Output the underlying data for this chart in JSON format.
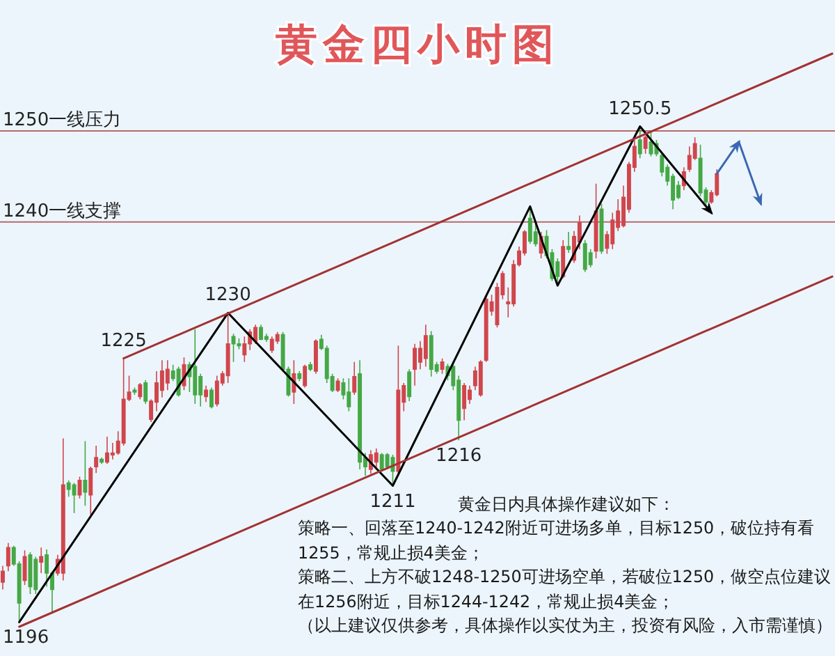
{
  "chart_data": {
    "type": "candlestick",
    "title": "黄金四小时图",
    "categories": [
      null,
      null,
      null,
      null,
      null,
      null,
      null,
      null,
      null,
      null,
      null,
      null,
      null,
      null,
      null,
      null,
      null,
      null,
      null,
      null,
      null,
      null,
      null,
      null,
      null,
      null,
      null,
      null,
      null,
      null,
      null,
      null,
      null,
      null,
      null,
      null,
      null,
      null,
      null,
      null,
      null,
      null,
      null,
      null,
      null,
      null,
      null,
      null,
      null,
      null,
      null,
      null,
      null,
      null,
      null,
      null,
      null,
      null,
      null,
      null,
      null,
      null,
      null,
      null,
      null,
      null,
      null,
      null,
      null,
      null,
      null,
      null,
      null,
      null,
      null,
      null,
      null,
      null,
      null,
      null,
      null,
      null,
      null,
      null,
      null,
      null,
      null,
      null,
      null,
      null,
      null,
      null,
      null,
      null,
      null,
      null,
      null,
      null,
      null,
      null,
      null,
      null,
      null,
      null,
      null,
      null,
      null,
      null,
      null,
      null,
      null,
      null,
      null,
      null,
      null,
      null,
      null,
      null,
      null,
      null,
      null,
      null,
      null,
      null,
      null,
      null,
      null,
      null,
      null,
      null,
      null,
      null,
      null,
      null,
      null,
      null,
      null,
      null,
      null,
      null,
      null,
      null,
      null,
      null,
      null,
      null,
      null,
      null,
      null,
      null,
      null,
      null
    ],
    "ohlc": [
      [
        1200.4,
        1202.2,
        1199.6,
        1201.6
      ],
      [
        1202.2,
        1204.7,
        1201.6,
        1204.2
      ],
      [
        1204.2,
        1204.4,
        1202.2,
        1202.4
      ],
      [
        1202.4,
        1202.7,
        1196,
        1198.1
      ],
      [
        1200.6,
        1203.9,
        1200.1,
        1203.2
      ],
      [
        1203.4,
        1203.7,
        1199.1,
        1199.9
      ],
      [
        1202.9,
        1203.2,
        1199.1,
        1199.6
      ],
      [
        1202.6,
        1204.2,
        1201.4,
        1203.2
      ],
      [
        1203.4,
        1204.0,
        1199.9,
        1201.4
      ],
      [
        1201.4,
        1201.6,
        1197.0,
        1199.6
      ],
      [
        1201.4,
        1203.4,
        1201.1,
        1202.9
      ],
      [
        1201.4,
        1216.2,
        1200.6,
        1211.1
      ],
      [
        1211.3,
        1211.6,
        1209.8,
        1210.6
      ],
      [
        1211.1,
        1211.3,
        1208.0,
        1210.0
      ],
      [
        1210.0,
        1212.0,
        1209.6,
        1211.6
      ],
      [
        1211.6,
        1215.9,
        1208.8,
        1210.3
      ],
      [
        1210.0,
        1213.1,
        1207.8,
        1212.9
      ],
      [
        1213.1,
        1215.4,
        1212.4,
        1214.1
      ],
      [
        1213.9,
        1214.1,
        1213.4,
        1213.6
      ],
      [
        1213.6,
        1216.4,
        1213.4,
        1214.6
      ],
      [
        1214.4,
        1215.7,
        1213.9,
        1214.6
      ],
      [
        1214.6,
        1217.0,
        1214.4,
        1215.9
      ],
      [
        1215.7,
        1225,
        1215.4,
        1220.5
      ],
      [
        1220.5,
        1223.1,
        1220.3,
        1221.3
      ],
      [
        1221.5,
        1221.8,
        1221.0,
        1221.3
      ],
      [
        1220.8,
        1222.3,
        1220.5,
        1222.1
      ],
      [
        1222.3,
        1222.6,
        1220.0,
        1220.3
      ],
      [
        1218.3,
        1220.5,
        1218.0,
        1220.3
      ],
      [
        1220.2,
        1223.6,
        1219.2,
        1222.3
      ],
      [
        1221.5,
        1224.8,
        1220.7,
        1223.6
      ],
      [
        1222.3,
        1224.8,
        1221.5,
        1223.8
      ],
      [
        1223.6,
        1224.3,
        1222.5,
        1222.8
      ],
      [
        1223.8,
        1224.1,
        1220.8,
        1221.0
      ],
      [
        1222.0,
        1225.1,
        1221.5,
        1224.3
      ],
      [
        1224.3,
        1224.6,
        1221.3,
        1223.0
      ],
      [
        1224.1,
        1228.2,
        1220.0,
        1221.0
      ],
      [
        1223.0,
        1223.3,
        1219.7,
        1221.0
      ],
      [
        1220.8,
        1222.0,
        1220.2,
        1221.5
      ],
      [
        1221.5,
        1221.8,
        1219.5,
        1219.7
      ],
      [
        1220.0,
        1223.1,
        1219.7,
        1222.5
      ],
      [
        1222.3,
        1223.6,
        1222.0,
        1223.3
      ],
      [
        1223.1,
        1230,
        1222.3,
        1226.6
      ],
      [
        1227.4,
        1227.7,
        1224.6,
        1226.6
      ],
      [
        1226.6,
        1227.2,
        1226.0,
        1226.4
      ],
      [
        1225.4,
        1227.4,
        1224.6,
        1226.6
      ],
      [
        1226.6,
        1228.2,
        1225.9,
        1227.9
      ],
      [
        1226.9,
        1228.7,
        1226.6,
        1228.4
      ],
      [
        1228.4,
        1228.7,
        1227.0,
        1227.1
      ],
      [
        1227.4,
        1227.7,
        1226.8,
        1227.1
      ],
      [
        1225.9,
        1227.4,
        1225.6,
        1227.1
      ],
      [
        1226.9,
        1227.9,
        1226.6,
        1227.6
      ],
      [
        1227.6,
        1227.9,
        1223.6,
        1223.8
      ],
      [
        1223.8,
        1224.1,
        1220.8,
        1221.0
      ],
      [
        1221.3,
        1224.8,
        1220.0,
        1223.3
      ],
      [
        1223.3,
        1223.6,
        1222.5,
        1222.8
      ],
      [
        1222.0,
        1224.3,
        1221.8,
        1224.1
      ],
      [
        1224.3,
        1224.6,
        1223.6,
        1223.8
      ],
      [
        1223.6,
        1227.1,
        1223.3,
        1226.9
      ],
      [
        1227.1,
        1227.6,
        1225.9,
        1226.1
      ],
      [
        1226.1,
        1226.4,
        1222.3,
        1222.8
      ],
      [
        1223.0,
        1223.3,
        1221.3,
        1221.5
      ],
      [
        1221.5,
        1222.8,
        1221.3,
        1222.5
      ],
      [
        1222.3,
        1222.8,
        1220.5,
        1221.0
      ],
      [
        1221.3,
        1222.8,
        1219.2,
        1219.7
      ],
      [
        1221.3,
        1224.6,
        1221.0,
        1223.0
      ],
      [
        1223.3,
        1224.8,
        1212.8,
        1213.6
      ],
      [
        1214.1,
        1214.6,
        1212.1,
        1213.1
      ],
      [
        1212.8,
        1214.9,
        1212.3,
        1214.4
      ],
      [
        1213.6,
        1215.1,
        1212.8,
        1214.6
      ],
      [
        1214.4,
        1214.6,
        1212.6,
        1212.8
      ],
      [
        1214.4,
        1214.6,
        1212.8,
        1213.1
      ],
      [
        1214.1,
        1214.4,
        1211,
        1212.6
      ],
      [
        1212.6,
        1226.4,
        1212.1,
        1221.5
      ],
      [
        1220.2,
        1222.3,
        1219.2,
        1222.0
      ],
      [
        1223.5,
        1223.8,
        1220.3,
        1220.8
      ],
      [
        1223.8,
        1226.6,
        1222.0,
        1226.1
      ],
      [
        1224.6,
        1226.9,
        1223.8,
        1226.1
      ],
      [
        1225.0,
        1228.7,
        1224.1,
        1227.5
      ],
      [
        1227.5,
        1228.0,
        1223.0,
        1223.8
      ],
      [
        1224.3,
        1224.6,
        1223.3,
        1223.6
      ],
      [
        1223.8,
        1225.0,
        1223.3,
        1224.6
      ],
      [
        1224.1,
        1224.4,
        1222.6,
        1223.1
      ],
      [
        1224.1,
        1224.6,
        1221.5,
        1222.0
      ],
      [
        1222.6,
        1223.1,
        1216,
        1218.2
      ],
      [
        1219.5,
        1222.3,
        1218.2,
        1222.0
      ],
      [
        1220.5,
        1222.0,
        1220.0,
        1221.5
      ],
      [
        1222.0,
        1224.1,
        1221.5,
        1223.6
      ],
      [
        1221.0,
        1224.8,
        1220.8,
        1224.6
      ],
      [
        1224.8,
        1232.0,
        1224.6,
        1231.5
      ],
      [
        1230.2,
        1232.0,
        1229.7,
        1231.2
      ],
      [
        1228.7,
        1233.3,
        1228.4,
        1232.8
      ],
      [
        1232.0,
        1234.6,
        1231.5,
        1234.3
      ],
      [
        1231.0,
        1232.8,
        1229.5,
        1231.2
      ],
      [
        1231.0,
        1235.8,
        1230.7,
        1235.3
      ],
      [
        1235.3,
        1237.3,
        1235.1,
        1236.8
      ],
      [
        1236.6,
        1239.1,
        1236.3,
        1238.9
      ],
      [
        1240.4,
        1241.7,
        1237.6,
        1237.9
      ],
      [
        1238.9,
        1240.0,
        1237.3,
        1237.6
      ],
      [
        1236.6,
        1238.9,
        1236.0,
        1238.4
      ],
      [
        1238.4,
        1239.1,
        1236.0,
        1236.3
      ],
      [
        1236.6,
        1237.0,
        1233.5,
        1233.8
      ],
      [
        1235.6,
        1236.0,
        1233.0,
        1234.0
      ],
      [
        1234.0,
        1238.0,
        1233.8,
        1237.3
      ],
      [
        1237.3,
        1238.9,
        1236.6,
        1237.0
      ],
      [
        1235.8,
        1239.0,
        1235.5,
        1238.4
      ],
      [
        1237.8,
        1240.7,
        1237.0,
        1239.9
      ],
      [
        1237.6,
        1238.0,
        1234.5,
        1234.8
      ],
      [
        1236.6,
        1237.0,
        1235.0,
        1235.3
      ],
      [
        1236.8,
        1244.2,
        1236.0,
        1241.2
      ],
      [
        1241.4,
        1242.0,
        1236.5,
        1236.8
      ],
      [
        1237.1,
        1239.0,
        1236.5,
        1238.6
      ],
      [
        1237.6,
        1241.0,
        1237.0,
        1240.2
      ],
      [
        1239.4,
        1242.5,
        1239.0,
        1241.2
      ],
      [
        1239.6,
        1244.0,
        1239.4,
        1242.7
      ],
      [
        1241.4,
        1246.6,
        1241.0,
        1246.3
      ],
      [
        1246.0,
        1249.0,
        1245.5,
        1248.3
      ],
      [
        1249.0,
        1250.5,
        1247.0,
        1247.5
      ],
      [
        1248.1,
        1249.5,
        1247.5,
        1249.3
      ],
      [
        1248.8,
        1249.9,
        1247.2,
        1247.5
      ],
      [
        1248.6,
        1249.0,
        1247.2,
        1247.5
      ],
      [
        1247.3,
        1247.6,
        1245.0,
        1245.5
      ],
      [
        1246.0,
        1246.3,
        1244.0,
        1244.5
      ],
      [
        1245.0,
        1245.3,
        1241.4,
        1242.4
      ],
      [
        1244.0,
        1244.5,
        1242.5,
        1242.7
      ],
      [
        1244.0,
        1246.0,
        1243.5,
        1245.5
      ],
      [
        1245.8,
        1248.3,
        1245.5,
        1247.3
      ],
      [
        1247.0,
        1249.3,
        1246.8,
        1248.6
      ],
      [
        1247.0,
        1248.5,
        1242.8,
        1243.2
      ],
      [
        1243.5,
        1243.8,
        1241.7,
        1242.2
      ],
      [
        1242.2,
        1243.5,
        1242.0,
        1243.2
      ],
      [
        1243.0,
        1245.8,
        1242.8,
        1245.3
      ],
      null,
      null,
      null,
      null,
      null,
      null,
      null,
      null,
      null,
      null,
      null,
      null,
      null,
      null,
      null,
      null,
      null,
      null,
      null,
      null,
      null
    ],
    "colors": [
      "#d0464c",
      "#d0464c",
      "#45a845",
      "#45a845",
      "#d0464c",
      "#45a845",
      "#45a845",
      "#d0464c",
      "#45a845",
      "#45a845",
      "#d0464c",
      "#d0464c",
      "#45a845",
      "#45a845",
      "#d0464c",
      "#45a845",
      "#d0464c",
      "#d0464c",
      "#45a845",
      "#d0464c",
      "#d0464c",
      "#d0464c",
      "#d0464c",
      "#d0464c",
      "#45a845",
      "#d0464c",
      "#45a845",
      "#d0464c",
      "#d0464c",
      "#d0464c",
      "#d0464c",
      "#45a845",
      "#45a845",
      "#d0464c",
      "#45a845",
      "#45a845",
      "#45a845",
      "#d0464c",
      "#45a845",
      "#d0464c",
      "#d0464c",
      "#d0464c",
      "#45a845",
      "#45a845",
      "#d0464c",
      "#d0464c",
      "#d0464c",
      "#45a845",
      "#45a845",
      "#d0464c",
      "#d0464c",
      "#45a845",
      "#45a845",
      "#d0464c",
      "#45a845",
      "#d0464c",
      "#45a845",
      "#d0464c",
      "#45a845",
      "#45a845",
      "#45a845",
      "#d0464c",
      "#45a845",
      "#45a845",
      "#d0464c",
      "#45a845",
      "#45a845",
      "#d0464c",
      "#d0464c",
      "#45a845",
      "#45a845",
      "#45a845",
      "#d0464c",
      "#d0464c",
      "#45a845",
      "#d0464c",
      "#d0464c",
      "#d0464c",
      "#45a845",
      "#45a845",
      "#d0464c",
      "#45a845",
      "#45a845",
      "#45a845",
      "#d0464c",
      "#d0464c",
      "#d0464c",
      "#d0464c",
      "#d0464c",
      "#d0464c",
      "#d0464c",
      "#d0464c",
      "#d0464c",
      "#d0464c",
      "#d0464c",
      "#d0464c",
      "#45a845",
      "#45a845",
      "#d0464c",
      "#45a845",
      "#45a845",
      "#45a845",
      "#d0464c",
      "#45a845",
      "#d0464c",
      "#d0464c",
      "#45a845",
      "#45a845",
      "#d0464c",
      "#45a845",
      "#d0464c",
      "#d0464c",
      "#d0464c",
      "#d0464c",
      "#d0464c",
      "#d0464c",
      "#45a845",
      "#d0464c",
      "#45a845",
      "#45a845",
      "#45a845",
      "#45a845",
      "#45a845",
      "#45a845",
      "#d0464c",
      "#d0464c",
      "#d0464c",
      "#45a845",
      "#45a845",
      "#d0464c",
      "#d0464c",
      null,
      null,
      null,
      null,
      null,
      null,
      null,
      null,
      null,
      null,
      null,
      null,
      null,
      null,
      null,
      null,
      null,
      null,
      null,
      null,
      null
    ],
    "series": [
      {
        "type": "line",
        "color": "#000000",
        "values": [
          null,
          null,
          null,
          1196,
          null,
          null,
          null,
          null,
          null,
          null,
          null,
          null,
          null,
          null,
          null,
          null,
          null,
          null,
          null,
          null,
          null,
          null,
          null,
          null,
          null,
          null,
          null,
          null,
          null,
          null,
          null,
          null,
          null,
          null,
          null,
          null,
          null,
          null,
          null,
          null,
          null,
          1230,
          null,
          null,
          null,
          null,
          null,
          null,
          null,
          null,
          null,
          null,
          null,
          null,
          null,
          null,
          null,
          null,
          null,
          null,
          null,
          null,
          null,
          null,
          null,
          null,
          null,
          null,
          null,
          null,
          null,
          1211,
          null,
          null,
          null,
          null,
          null,
          null,
          null,
          null,
          null,
          null,
          null,
          null,
          null,
          null,
          null,
          null,
          null,
          null,
          null,
          null,
          null,
          null,
          null,
          null,
          1241.7,
          null,
          null,
          null,
          null,
          1233,
          null,
          null,
          null,
          null,
          null,
          null,
          null,
          null,
          null,
          null,
          null,
          null,
          null,
          null,
          1250.5,
          null,
          null,
          null,
          null,
          null,
          null,
          null,
          null,
          null,
          null,
          null,
          null,
          1241,
          null,
          null,
          null,
          null,
          null,
          null,
          null,
          null,
          null,
          null,
          null,
          null,
          null,
          null,
          null,
          null,
          null,
          null,
          null,
          null,
          null,
          null
        ]
      },
      {
        "type": "line",
        "color": "#a33232",
        "values": [
          null,
          null,
          null,
          null,
          null,
          null,
          null,
          null,
          null,
          null,
          null,
          null,
          null,
          null,
          null,
          null,
          null,
          null,
          null,
          null,
          null,
          null,
          1225,
          null,
          null,
          null,
          null,
          null,
          null,
          null,
          null,
          null,
          null,
          null,
          null,
          null,
          null,
          null,
          null,
          null,
          null,
          null,
          null,
          null,
          null,
          null,
          null,
          null,
          null,
          null,
          null,
          null,
          null,
          null,
          null,
          null,
          null,
          null,
          null,
          null,
          null,
          null,
          null,
          null,
          null,
          null,
          null,
          null,
          null,
          null,
          null,
          null,
          null,
          null,
          null,
          null,
          null,
          null,
          null,
          null,
          null,
          null,
          null,
          null,
          null,
          null,
          null,
          null,
          null,
          null,
          null,
          null,
          null,
          null,
          null,
          null,
          null,
          null,
          null,
          null,
          null,
          null,
          null,
          null,
          null,
          null,
          null,
          null,
          null,
          null,
          null,
          null,
          null,
          null,
          null,
          null,
          null,
          null,
          null,
          null,
          null,
          null,
          null,
          null,
          null,
          null,
          null,
          null,
          null,
          null,
          null,
          null,
          null,
          null,
          null,
          null,
          null,
          null,
          null,
          null,
          null,
          null,
          null,
          null,
          null,
          null,
          null,
          null,
          null,
          null,
          null,
          1258.5
        ]
      },
      {
        "type": "line",
        "color": "#a33232",
        "values": [
          null,
          null,
          null,
          1195.5,
          null,
          null,
          null,
          null,
          null,
          null,
          null,
          null,
          null,
          null,
          null,
          null,
          null,
          null,
          null,
          null,
          null,
          null,
          null,
          null,
          null,
          null,
          null,
          null,
          null,
          null,
          null,
          null,
          null,
          null,
          null,
          null,
          null,
          null,
          null,
          null,
          null,
          null,
          null,
          null,
          null,
          null,
          null,
          null,
          null,
          null,
          null,
          null,
          null,
          null,
          null,
          null,
          null,
          null,
          null,
          null,
          null,
          null,
          null,
          null,
          null,
          null,
          null,
          null,
          null,
          null,
          null,
          null,
          null,
          null,
          null,
          null,
          null,
          null,
          null,
          null,
          null,
          null,
          null,
          null,
          null,
          null,
          null,
          null,
          null,
          null,
          null,
          null,
          null,
          null,
          null,
          null,
          null,
          null,
          null,
          null,
          null,
          null,
          null,
          null,
          null,
          null,
          null,
          null,
          null,
          null,
          null,
          null,
          null,
          null,
          null,
          null,
          null,
          null,
          null,
          null,
          null,
          null,
          null,
          null,
          null,
          null,
          null,
          null,
          null,
          null,
          null,
          null,
          null,
          null,
          null,
          null,
          null,
          null,
          null,
          null,
          null,
          null,
          null,
          null,
          null,
          null,
          null,
          null,
          null,
          null,
          null,
          1234
        ]
      },
      {
        "type": "line",
        "color": "#3b68b2",
        "values": [
          null,
          null,
          null,
          null,
          null,
          null,
          null,
          null,
          null,
          null,
          null,
          null,
          null,
          null,
          null,
          null,
          null,
          null,
          null,
          null,
          null,
          null,
          null,
          null,
          null,
          null,
          null,
          null,
          null,
          null,
          null,
          null,
          null,
          null,
          null,
          null,
          null,
          null,
          null,
          null,
          null,
          null,
          null,
          null,
          null,
          null,
          null,
          null,
          null,
          null,
          null,
          null,
          null,
          null,
          null,
          null,
          null,
          null,
          null,
          null,
          null,
          null,
          null,
          null,
          null,
          null,
          null,
          null,
          null,
          null,
          null,
          null,
          null,
          null,
          null,
          null,
          null,
          null,
          null,
          null,
          null,
          null,
          null,
          null,
          null,
          null,
          null,
          null,
          null,
          null,
          null,
          null,
          null,
          null,
          null,
          null,
          null,
          null,
          null,
          null,
          null,
          null,
          null,
          null,
          null,
          null,
          null,
          null,
          null,
          null,
          null,
          null,
          null,
          null,
          null,
          null,
          null,
          null,
          null,
          null,
          null,
          null,
          null,
          null,
          null,
          null,
          null,
          null,
          null,
          null,
          1245.3,
          null,
          null,
          null,
          1248.8,
          null,
          null,
          null,
          null,
          null,
          null,
          null,
          null,
          null,
          null,
          null,
          null,
          null,
          null,
          null,
          null,
          null
        ]
      },
      {
        "type": "line",
        "color": "#3b68b2",
        "values": [
          null,
          null,
          null,
          null,
          null,
          null,
          null,
          null,
          null,
          null,
          null,
          null,
          null,
          null,
          null,
          null,
          null,
          null,
          null,
          null,
          null,
          null,
          null,
          null,
          null,
          null,
          null,
          null,
          null,
          null,
          null,
          null,
          null,
          null,
          null,
          null,
          null,
          null,
          null,
          null,
          null,
          null,
          null,
          null,
          null,
          null,
          null,
          null,
          null,
          null,
          null,
          null,
          null,
          null,
          null,
          null,
          null,
          null,
          null,
          null,
          null,
          null,
          null,
          null,
          null,
          null,
          null,
          null,
          null,
          null,
          null,
          null,
          null,
          null,
          null,
          null,
          null,
          null,
          null,
          null,
          null,
          null,
          null,
          null,
          null,
          null,
          null,
          null,
          null,
          null,
          null,
          null,
          null,
          null,
          null,
          null,
          null,
          null,
          null,
          null,
          null,
          null,
          null,
          null,
          null,
          null,
          null,
          null,
          null,
          null,
          null,
          null,
          null,
          null,
          null,
          null,
          null,
          null,
          null,
          null,
          null,
          null,
          null,
          null,
          null,
          null,
          null,
          null,
          null,
          null,
          null,
          null,
          null,
          null,
          1248.8,
          null,
          null,
          null,
          1242,
          null,
          null,
          null,
          null,
          null,
          null,
          null,
          null,
          null,
          null,
          null,
          null,
          null
        ]
      }
    ],
    "ref_lines": [
      {
        "axis": "y",
        "value": 1250,
        "label": "1250一线压力",
        "color": "#b86a6a"
      },
      {
        "axis": "y",
        "value": 1240,
        "label": "1240一线支撑",
        "color": "#b86a6a"
      }
    ],
    "annotations": [
      {
        "text": "1225",
        "y": 1225
      },
      {
        "text": "1230",
        "y": 1230
      },
      {
        "text": "1196",
        "y": 1196
      },
      {
        "text": "1211",
        "y": 1211
      },
      {
        "text": "1216",
        "y": 1216
      },
      {
        "text": "1250.5",
        "y": 1250.5
      },
      "黄金日内具体操作建议如下：",
      "策略一、回落至1240-1242附近可进场多单，目标1250，破位持有看1255，常规止损4美金；",
      "策略二、上方不破1248-1250可进场空单，若破位1250，做空点位建议在1256附近，目标1244-1242，常规止损4美金；",
      "（以上建议仅供参考，具体操作以实仗为主，投资有风险，入市需谨慎）"
    ]
  }
}
